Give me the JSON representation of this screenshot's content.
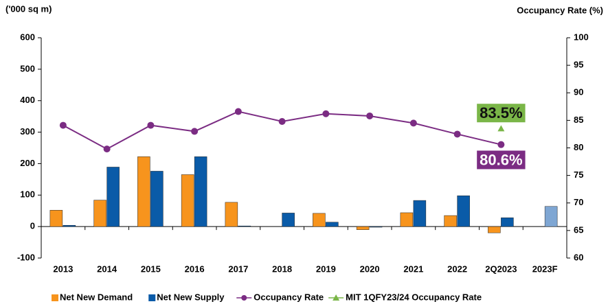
{
  "chart_data": {
    "type": "bar-line",
    "y_label": "('000 sq m)",
    "y2_label": "Occupancy Rate (%)",
    "categories": [
      "2013",
      "2014",
      "2015",
      "2016",
      "2017",
      "2018",
      "2019",
      "2020",
      "2021",
      "2022",
      "2Q2023",
      "2023F"
    ],
    "ylim": [
      -100,
      600
    ],
    "yticks": [
      -100,
      0,
      100,
      200,
      300,
      400,
      500,
      600
    ],
    "y2lim": [
      60,
      100
    ],
    "y2ticks": [
      60,
      65,
      70,
      75,
      80,
      85,
      90,
      95,
      100
    ],
    "legend": "bottom",
    "series": [
      {
        "name": "Net New Demand",
        "kind": "bar",
        "color": "#f7941d",
        "values": [
          52,
          84,
          222,
          165,
          77,
          null,
          42,
          -10,
          44,
          35,
          -20,
          null
        ]
      },
      {
        "name": "Net New Supply",
        "kind": "bar",
        "color": "#0a5ba8",
        "colors": [
          "#0a5ba8",
          "#0a5ba8",
          "#0a5ba8",
          "#0a5ba8",
          "#0a5ba8",
          "#0a5ba8",
          "#0a5ba8",
          "#0a5ba8",
          "#0a5ba8",
          "#0a5ba8",
          "#0a5ba8",
          "#7ea6d3"
        ],
        "values": [
          4,
          189,
          176,
          222,
          2,
          43,
          14,
          -2,
          83,
          98,
          28,
          64
        ]
      },
      {
        "name": "Occupancy Rate",
        "kind": "line",
        "axis": "y2",
        "color": "#7b2c83",
        "label_color": "#7b2c83",
        "values": [
          84.1,
          79.8,
          84.1,
          83.0,
          86.6,
          84.8,
          86.2,
          85.8,
          84.5,
          82.5,
          80.6,
          null
        ],
        "value_labels": [
          null,
          null,
          null,
          null,
          null,
          null,
          null,
          null,
          null,
          null,
          "80.6%",
          null
        ]
      },
      {
        "name": "MIT 1QFY23/24 Occupancy Rate",
        "kind": "marker",
        "axis": "y2",
        "color": "#7ab648",
        "label_color": "#7ab648",
        "values": [
          null,
          null,
          null,
          null,
          null,
          null,
          null,
          null,
          null,
          null,
          83.5,
          null
        ],
        "value_labels": [
          null,
          null,
          null,
          null,
          null,
          null,
          null,
          null,
          null,
          null,
          "83.5%",
          null
        ]
      }
    ]
  }
}
